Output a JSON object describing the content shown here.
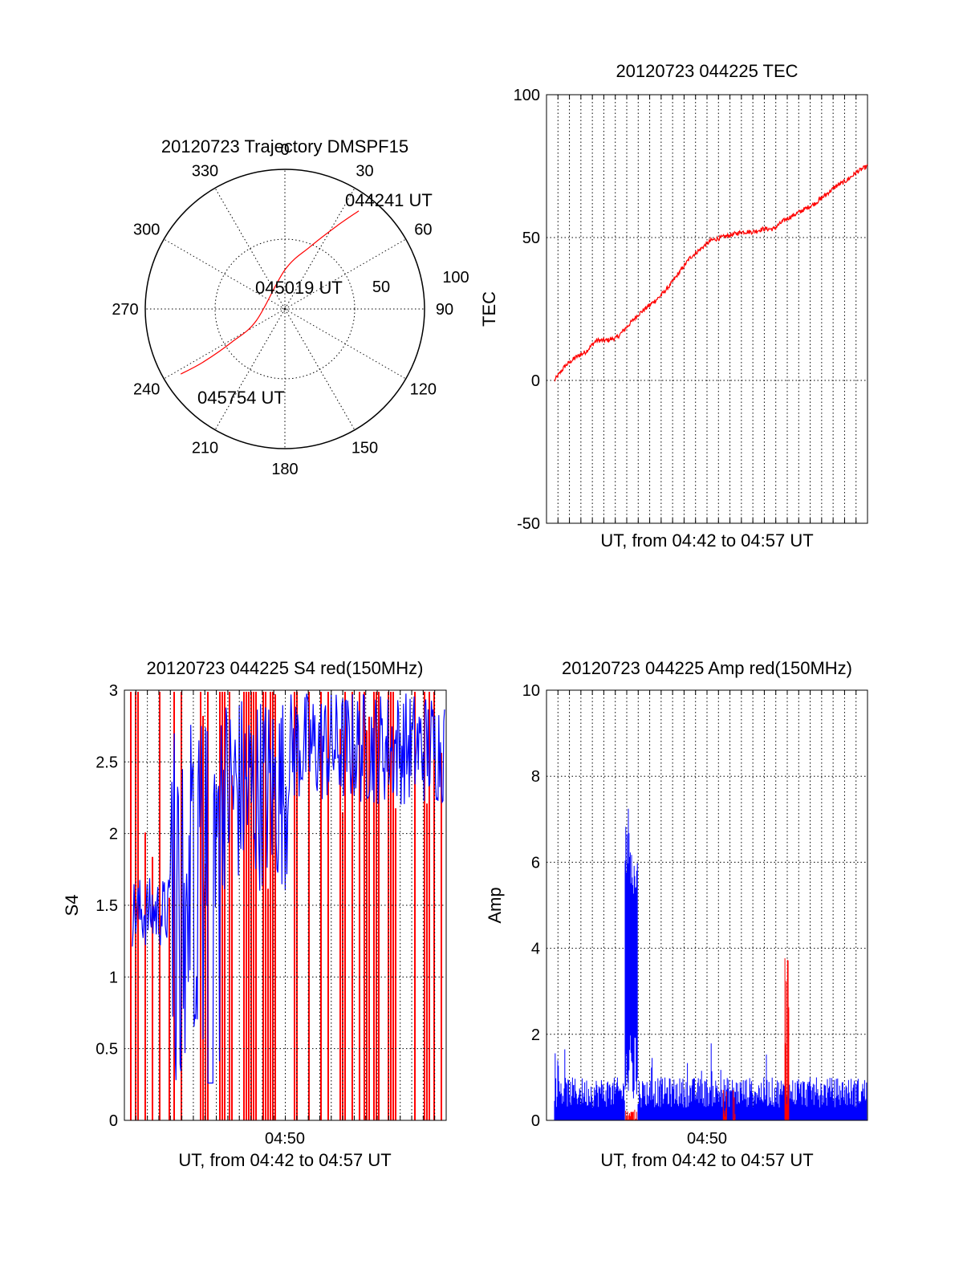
{
  "chart_data": [
    {
      "type": "polar",
      "title": "20120723 Trajectory DMSPF15",
      "azimuth_labels": [
        "0",
        "30",
        "60",
        "90",
        "120",
        "150",
        "180",
        "210",
        "240",
        "270",
        "300",
        "330"
      ],
      "radius_labels": [
        "50",
        "100"
      ],
      "grid": true,
      "series": [
        {
          "color": "#ff0000",
          "points": [
            {
              "az": 37,
              "zen": 88
            },
            {
              "az": 32,
              "zen": 70
            },
            {
              "az": 22,
              "zen": 48
            },
            {
              "az": 0,
              "zen": 28
            },
            {
              "az": 248,
              "zen": 22
            },
            {
              "az": 238,
              "zen": 45
            },
            {
              "az": 237,
              "zen": 70
            },
            {
              "az": 238,
              "zen": 88
            }
          ]
        }
      ],
      "annotations": [
        {
          "text": "044241 UT",
          "az": 37,
          "zen": 88
        },
        {
          "text": "045019 UT",
          "az": 248,
          "zen": 22
        },
        {
          "text": "045754 UT",
          "az": 238,
          "zen": 88
        }
      ]
    },
    {
      "type": "line",
      "title": "20120723 044225 TEC",
      "xlabel": "UT, from 04:42 to 04:57 UT",
      "ylabel": "TEC",
      "ylim": [
        -50,
        100
      ],
      "yticks": [
        "-50",
        "0",
        "50",
        "100"
      ],
      "xlim": [
        0,
        15
      ],
      "grid": true,
      "series": [
        {
          "color": "#ff0000",
          "x": [
            0,
            0.5,
            1,
            1.5,
            2,
            2.5,
            3,
            3.5,
            4,
            4.5,
            5,
            5.5,
            6,
            6.5,
            7,
            7.5,
            8,
            8.5,
            9,
            9.5,
            10,
            10.5,
            11,
            11.5,
            12,
            12.5,
            13,
            13.5,
            14,
            14.5,
            15
          ],
          "y": [
            0,
            5,
            8,
            10,
            14,
            14,
            15,
            19,
            23,
            26,
            29,
            33,
            38,
            43,
            46,
            49,
            50,
            51,
            52,
            52,
            53,
            53,
            56,
            58,
            60,
            62,
            65,
            68,
            70,
            73,
            75
          ]
        }
      ]
    },
    {
      "type": "line",
      "title": "20120723 044225 S4 red(150MHz)",
      "xlabel": "UT, from 04:42 to 04:57 UT",
      "ylabel": "S4",
      "ylim": [
        0,
        3
      ],
      "yticks": [
        "0",
        "0.5",
        "1",
        "1.5",
        "2",
        "2.5",
        "3"
      ],
      "xlim": [
        0,
        15
      ],
      "xticks": [
        {
          "x": 7,
          "label": "04:50"
        }
      ],
      "grid": true,
      "series": [
        {
          "color": "#ff0000",
          "description": "dense spikes reaching 3 across entire interval"
        },
        {
          "color": "#0000ff",
          "description": "envelope rising from about 1.2 at start to near 3 after 04:50"
        }
      ]
    },
    {
      "type": "line",
      "title": "20120723 044225 Amp red(150MHz)",
      "xlabel": "UT, from 04:42 to 04:57 UT",
      "ylabel": "Amp",
      "ylim": [
        0,
        10
      ],
      "yticks": [
        "0",
        "2",
        "4",
        "6",
        "8",
        "10"
      ],
      "xlim": [
        0,
        15
      ],
      "xticks": [
        {
          "x": 7,
          "label": "04:50"
        }
      ],
      "grid": true,
      "series": [
        {
          "color": "#0000ff",
          "baseline": 0.6,
          "peaks": [
            {
              "x": 3.6,
              "y": 7.4
            },
            {
              "x": 3.8,
              "y": 6.1
            }
          ]
        },
        {
          "color": "#ff0000",
          "baseline": 0.05,
          "peaks": [
            {
              "x": 8.2,
              "y": 1.0
            },
            {
              "x": 11.2,
              "y": 3.9
            }
          ]
        }
      ]
    }
  ]
}
